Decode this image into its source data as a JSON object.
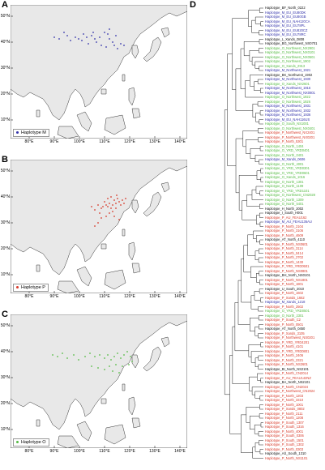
{
  "colors": {
    "M": "#3333aa",
    "P": "#d83a2a",
    "O": "#55bb44",
    "other": "#111111",
    "land": "#e8e8e8",
    "sea": "#ffffff"
  },
  "panels": [
    {
      "letter": "A",
      "legend": "Haplotype M",
      "color": "#3333aa"
    },
    {
      "letter": "B",
      "legend": "Haplotype P",
      "color": "#d83a2a"
    },
    {
      "letter": "C",
      "legend": "Haplotype O",
      "color": "#55bb44"
    }
  ],
  "lat_labels": [
    "50°N",
    "40°N",
    "30°N",
    "20°N",
    "10°N"
  ],
  "lon_labels": [
    "80°E",
    "90°E",
    "100°E",
    "110°E",
    "120°E",
    "130°E",
    "140°E"
  ],
  "tree_panel": {
    "letter": "D"
  },
  "tree_labels": [
    {
      "text": "Haplotype_BF_North_0222",
      "hap": "other"
    },
    {
      "text": "Haplotype_M_EU_EU80DK",
      "hap": "M"
    },
    {
      "text": "Haplotype_M_EU_EU80GB",
      "hap": "M"
    },
    {
      "text": "Haplotype_M_EU_NAH120CA",
      "hap": "M"
    },
    {
      "text": "Haplotype_M_EU_EU78PL",
      "hap": "M"
    },
    {
      "text": "Haplotype_M_EU_EU820CZ",
      "hap": "M"
    },
    {
      "text": "Haplotype_M_EU_EU78RC",
      "hap": "M"
    },
    {
      "text": "Haplotype_L_Xands_0808",
      "hap": "other"
    },
    {
      "text": "Haplotype_BG_Northwest_NX0701",
      "hap": "other"
    },
    {
      "text": "Haplotype_O_Northwest_NX2901",
      "hap": "O"
    },
    {
      "text": "Haplotype_O_Northwest_NX0101",
      "hap": "O"
    },
    {
      "text": "Haplotype_O_Northwest_NX0501",
      "hap": "O"
    },
    {
      "text": "Haplotype_O_Northwest_1902",
      "hap": "O"
    },
    {
      "text": "Haplotype_O_Xands_2913",
      "hap": "O"
    },
    {
      "text": "Haplotype_M_Northwest_1921",
      "hap": "M"
    },
    {
      "text": "Haplotype_BK_Northwest_1902",
      "hap": "other"
    },
    {
      "text": "Haplotype_M_Northwest_1930",
      "hap": "M"
    },
    {
      "text": "Haplotype_O_Xands_NX2601",
      "hap": "O"
    },
    {
      "text": "Haplotype_M_Northwest_1916",
      "hap": "M"
    },
    {
      "text": "Haplotype_M_Northwest_NX0801",
      "hap": "M"
    },
    {
      "text": "Haplotype_O_Northwest_1922",
      "hap": "O"
    },
    {
      "text": "Haplotype_O_Northwest_1926",
      "hap": "O"
    },
    {
      "text": "Haplotype_M_Northwest_1931",
      "hap": "M"
    },
    {
      "text": "Haplotype_M_Northwest_1932",
      "hap": "M"
    },
    {
      "text": "Haplotype_M_Northwest_1936",
      "hap": "M"
    },
    {
      "text": "Haplotype_M_EU_NAH116US",
      "hap": "M"
    },
    {
      "text": "Haplotype_O_South_NS1001",
      "hap": "O"
    },
    {
      "text": "Haplotype_O_Northwest_NX0401",
      "hap": "O"
    },
    {
      "text": "Haplotype_P_Northwest_NX2401",
      "hap": "P"
    },
    {
      "text": "Haplotype_P_Northwest_NX0201",
      "hap": "P"
    },
    {
      "text": "Haplotype_P_North_5301",
      "hap": "P"
    },
    {
      "text": "Haplotype_O_North_1404",
      "hap": "O"
    },
    {
      "text": "Haplotype_O_YRD_YRD0401",
      "hap": "O"
    },
    {
      "text": "Haplotype_O_North_0401",
      "hap": "O"
    },
    {
      "text": "Haplotype_M_Xands_0606",
      "hap": "M"
    },
    {
      "text": "Haplotype_O_North_4001",
      "hap": "O"
    },
    {
      "text": "Haplotype_O_YRD_YRD0301",
      "hap": "O"
    },
    {
      "text": "Haplotype_O_YRD_YRD0601",
      "hap": "O"
    },
    {
      "text": "Haplotype_O_Xands_1016",
      "hap": "O"
    },
    {
      "text": "Haplotype_O_North_1301",
      "hap": "O"
    },
    {
      "text": "Haplotype_O_North_1109",
      "hap": "O"
    },
    {
      "text": "Haplotype_O_YRD_YRD1101",
      "hap": "O"
    },
    {
      "text": "Haplotype_O_Northwest_CN2028",
      "hap": "O"
    },
    {
      "text": "Haplotype_O_North_1309",
      "hap": "O"
    },
    {
      "text": "Haplotype_O_North_5401",
      "hap": "O"
    },
    {
      "text": "Haplotype_H_North_2002",
      "hap": "other"
    },
    {
      "text": "Haplotype_I_South_H001",
      "hap": "other"
    },
    {
      "text": "Haplotype_P_AU_FEAU162",
      "hap": "P"
    },
    {
      "text": "Haplotype_M_AU_FEAU136AU",
      "hap": "M"
    },
    {
      "text": "Haplotype_P_North_2104",
      "hap": "P"
    },
    {
      "text": "Haplotype_P_North_3106",
      "hap": "P"
    },
    {
      "text": "Haplotype_P_North_4609",
      "hap": "P"
    },
    {
      "text": "Haplotype_AT_North_4110",
      "hap": "other"
    },
    {
      "text": "Haplotype_P_North_NS0601",
      "hap": "P"
    },
    {
      "text": "Haplotype_P_North_3114",
      "hap": "P"
    },
    {
      "text": "Haplotype_P_North_0414",
      "hap": "P"
    },
    {
      "text": "Haplotype_P_North_2702",
      "hap": "P"
    },
    {
      "text": "Haplotype_P_North_1430",
      "hap": "P"
    },
    {
      "text": "Haplotype_P_YRD_YRD0501",
      "hap": "P"
    },
    {
      "text": "Haplotype_P_North_NS0801",
      "hap": "P"
    },
    {
      "text": "Haplotype_BH_North_NS0101",
      "hap": "other"
    },
    {
      "text": "Haplotype_P_North_NS1801",
      "hap": "P"
    },
    {
      "text": "Haplotype_P_North_1801",
      "hap": "P"
    },
    {
      "text": "Haplotype_U_South_2010",
      "hap": "other"
    },
    {
      "text": "Haplotype_P_North_1602",
      "hap": "P"
    },
    {
      "text": "Haplotype_P_Xands_1662",
      "hap": "P"
    },
    {
      "text": "Haplotype_M_Xands_1218",
      "hap": "M"
    },
    {
      "text": "Haplotype_P_North_2502",
      "hap": "P"
    },
    {
      "text": "Haplotype_O_YRD_YRD0501",
      "hap": "O"
    },
    {
      "text": "Haplotype_O_North_2301",
      "hap": "O"
    },
    {
      "text": "Haplotype_P_South_C2",
      "hap": "P"
    },
    {
      "text": "Haplotype_P_North_0501",
      "hap": "P"
    },
    {
      "text": "Haplotype_AT_North_0450",
      "hap": "other"
    },
    {
      "text": "Haplotype_P_Xands_3105",
      "hap": "P"
    },
    {
      "text": "Haplotype_P_Northwest_NS0201",
      "hap": "P"
    },
    {
      "text": "Haplotype_P_YRD_YRD4201",
      "hap": "P"
    },
    {
      "text": "Haplotype_P_North_4101",
      "hap": "P"
    },
    {
      "text": "Haplotype_P_YRD_YRD0801",
      "hap": "P"
    },
    {
      "text": "Haplotype_P_North_2406",
      "hap": "P"
    },
    {
      "text": "Haplotype_P_North_2321",
      "hap": "P"
    },
    {
      "text": "Haplotype_P_North_NS2601",
      "hap": "P"
    },
    {
      "text": "Haplotype_BI_North_NS2101",
      "hap": "other"
    },
    {
      "text": "Haplotype_P_North_CN2014",
      "hap": "P"
    },
    {
      "text": "Haplotype_P_AU_FEAU142NZ",
      "hap": "P"
    },
    {
      "text": "Haplotype_BA_North_NS2101",
      "hap": "other"
    },
    {
      "text": "Haplotype_P_North_CN2024",
      "hap": "P"
    },
    {
      "text": "Haplotype_P_Northwest_CN2024",
      "hap": "P"
    },
    {
      "text": "Haplotype_P_North_1203",
      "hap": "P"
    },
    {
      "text": "Haplotype_P_North_3310",
      "hap": "P"
    },
    {
      "text": "Haplotype_P_North_1001",
      "hap": "P"
    },
    {
      "text": "Haplotype_P_Xands_0802",
      "hap": "P"
    },
    {
      "text": "Haplotype_P_North_2111",
      "hap": "P"
    },
    {
      "text": "Haplotype_P_North_1208",
      "hap": "P"
    },
    {
      "text": "Haplotype_P_South_1307",
      "hap": "P"
    },
    {
      "text": "Haplotype_P_South_1316",
      "hap": "P"
    },
    {
      "text": "Haplotype_P_North_4001",
      "hap": "P"
    },
    {
      "text": "Haplotype_P_South_0306",
      "hap": "P"
    },
    {
      "text": "Haplotype_P_South_1501",
      "hap": "P"
    },
    {
      "text": "Haplotype_P_South_1302",
      "hap": "P"
    },
    {
      "text": "Haplotype_P_North_0303",
      "hap": "P"
    },
    {
      "text": "Haplotype_AS_South_1310",
      "hap": "other"
    },
    {
      "text": "Haplotype_P_North_NS1101",
      "hap": "P"
    }
  ]
}
